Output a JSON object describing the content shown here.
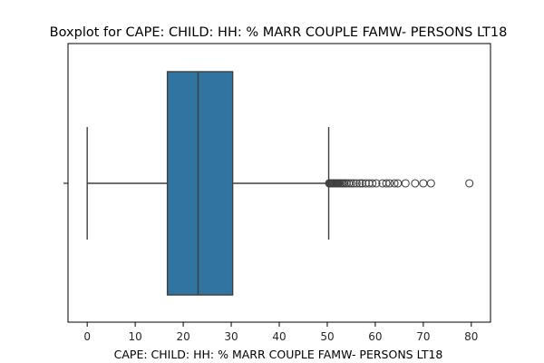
{
  "chart_data": {
    "type": "boxplot",
    "title": "Boxplot for CAPE: CHILD: HH: % MARR COUPLE FAMW- PERSONS LT18",
    "xlabel": "CAPE: CHILD: HH: % MARR COUPLE FAMW- PERSONS LT18",
    "ylabel": "",
    "orientation": "horizontal",
    "xlim": [
      -4,
      84
    ],
    "xticks": [
      0,
      10,
      20,
      30,
      40,
      50,
      60,
      70,
      80
    ],
    "grid": false,
    "box_color": "#3274a1",
    "line_color": "#3f3f3f",
    "stats": {
      "whisker_low": 0,
      "q1": 16.7,
      "median": 23.1,
      "q3": 30.3,
      "whisker_high": 50.3
    },
    "outliers": [
      50.4,
      50.6,
      50.8,
      51.0,
      51.2,
      51.4,
      51.6,
      51.8,
      52.0,
      52.2,
      52.4,
      52.7,
      53.0,
      53.3,
      53.6,
      54.0,
      54.5,
      55.0,
      55.5,
      56.1,
      56.8,
      57.3,
      58.0,
      58.7,
      59.4,
      60.2,
      61.5,
      62.3,
      63.0,
      64.0,
      64.7,
      66.3,
      68.3,
      70.0,
      71.6,
      79.6
    ]
  }
}
